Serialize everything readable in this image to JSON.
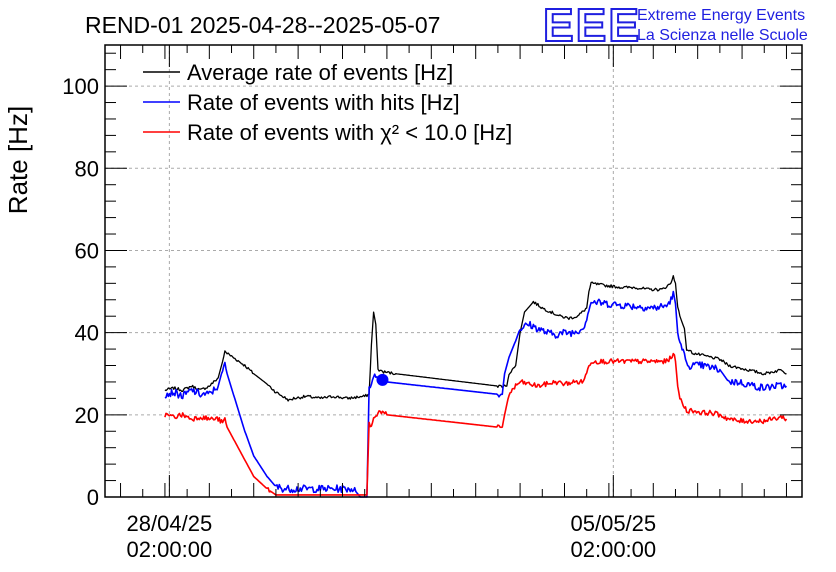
{
  "chart_data": {
    "type": "line",
    "title": "REND-01 2025-04-28--2025-05-07",
    "xlabel": "",
    "ylabel": "Rate [Hz]",
    "ylim": [
      0,
      110
    ],
    "yticks": [
      0,
      20,
      40,
      60,
      80,
      100
    ],
    "xlim": [
      -0.35,
      15.35
    ],
    "xticks": [
      {
        "x": 1.1,
        "line1": "28/04/25",
        "line2": "02:00:00"
      },
      {
        "x": 11.1,
        "line1": "05/05/25",
        "line2": "02:00:00"
      }
    ],
    "grid": true,
    "legend_position": "top-left",
    "logo": {
      "mark": "EEE",
      "line1": "Extreme Energy Events",
      "line2": "La Scienza nelle Scuole"
    },
    "series": [
      {
        "name": "Average rate of events [Hz]",
        "color": "#000000",
        "noise": 0.35,
        "points": [
          [
            1.0,
            26
          ],
          [
            1.2,
            26.5
          ],
          [
            1.4,
            26
          ],
          [
            1.6,
            27
          ],
          [
            1.8,
            26
          ],
          [
            2.0,
            27
          ],
          [
            2.2,
            29
          ],
          [
            2.3,
            33
          ],
          [
            2.35,
            35.5
          ],
          [
            2.4,
            35
          ],
          [
            2.6,
            33.5
          ],
          [
            2.8,
            32
          ],
          [
            3.0,
            30
          ],
          [
            3.3,
            27.5
          ],
          [
            3.5,
            25.5
          ],
          [
            3.8,
            23.5
          ],
          [
            3.9,
            24
          ],
          [
            4.2,
            24.5
          ],
          [
            4.5,
            24
          ],
          [
            4.8,
            24.5
          ],
          [
            5.1,
            24
          ],
          [
            5.5,
            24.5
          ],
          [
            5.6,
            25
          ],
          [
            5.65,
            37
          ],
          [
            5.7,
            45
          ],
          [
            5.75,
            42
          ],
          [
            5.8,
            31
          ],
          [
            5.9,
            30.5
          ],
          [
            6.2,
            30
          ],
          [
            8.5,
            27
          ],
          [
            8.7,
            27
          ],
          [
            8.75,
            30
          ],
          [
            8.9,
            32
          ],
          [
            9.0,
            40
          ],
          [
            9.1,
            45
          ],
          [
            9.3,
            47.5
          ],
          [
            9.5,
            46
          ],
          [
            9.7,
            45
          ],
          [
            9.9,
            44
          ],
          [
            10.1,
            43.5
          ],
          [
            10.3,
            44
          ],
          [
            10.5,
            46
          ],
          [
            10.55,
            50
          ],
          [
            10.6,
            52
          ],
          [
            10.9,
            51.5
          ],
          [
            11.3,
            51
          ],
          [
            11.6,
            51
          ],
          [
            11.9,
            50.5
          ],
          [
            12.2,
            50.5
          ],
          [
            12.4,
            52
          ],
          [
            12.45,
            54
          ],
          [
            12.5,
            52
          ],
          [
            12.55,
            46
          ],
          [
            12.6,
            44
          ],
          [
            12.7,
            41
          ],
          [
            12.75,
            36
          ],
          [
            12.9,
            35
          ],
          [
            13.1,
            34.5
          ],
          [
            13.3,
            34
          ],
          [
            13.5,
            33.5
          ],
          [
            13.7,
            32
          ],
          [
            13.9,
            31.5
          ],
          [
            14.1,
            31
          ],
          [
            14.3,
            30.5
          ],
          [
            14.5,
            30
          ],
          [
            14.7,
            30.5
          ],
          [
            14.9,
            31
          ],
          [
            15.0,
            30
          ]
        ]
      },
      {
        "name": "Rate of events with hits [Hz]",
        "color": "#0000ff",
        "noise": 0.9,
        "points": [
          [
            1.0,
            25
          ],
          [
            1.2,
            25.5
          ],
          [
            1.4,
            24.5
          ],
          [
            1.6,
            26
          ],
          [
            1.8,
            25
          ],
          [
            2.0,
            25
          ],
          [
            2.2,
            27
          ],
          [
            2.3,
            31
          ],
          [
            2.35,
            32
          ],
          [
            2.4,
            30
          ],
          [
            2.6,
            23
          ],
          [
            2.8,
            16
          ],
          [
            3.0,
            10
          ],
          [
            3.3,
            5
          ],
          [
            3.5,
            2.5
          ],
          [
            3.7,
            2
          ],
          [
            4.0,
            2
          ],
          [
            4.5,
            2
          ],
          [
            5.0,
            2
          ],
          [
            5.2,
            2
          ],
          [
            5.25,
            2
          ],
          [
            5.4,
            0
          ],
          [
            5.55,
            0
          ],
          [
            5.6,
            26
          ],
          [
            5.65,
            28
          ],
          [
            5.7,
            30
          ],
          [
            5.75,
            29
          ],
          [
            5.9,
            28.5
          ],
          [
            6.0,
            28
          ],
          [
            8.5,
            25
          ],
          [
            8.6,
            25
          ],
          [
            8.65,
            30
          ],
          [
            8.75,
            34
          ],
          [
            8.9,
            38
          ],
          [
            9.0,
            41
          ],
          [
            9.2,
            42
          ],
          [
            9.4,
            41
          ],
          [
            9.6,
            40
          ],
          [
            9.8,
            39.5
          ],
          [
            10.0,
            40
          ],
          [
            10.2,
            40
          ],
          [
            10.4,
            41
          ],
          [
            10.5,
            43
          ],
          [
            10.55,
            46
          ],
          [
            10.6,
            47.5
          ],
          [
            11.0,
            47
          ],
          [
            11.5,
            46.5
          ],
          [
            12.0,
            46
          ],
          [
            12.3,
            46.5
          ],
          [
            12.4,
            48
          ],
          [
            12.45,
            50
          ],
          [
            12.5,
            47
          ],
          [
            12.55,
            40
          ],
          [
            12.6,
            37
          ],
          [
            12.7,
            35
          ],
          [
            12.75,
            32
          ],
          [
            12.9,
            32
          ],
          [
            13.1,
            32
          ],
          [
            13.3,
            31.5
          ],
          [
            13.5,
            31
          ],
          [
            13.7,
            28
          ],
          [
            13.9,
            28
          ],
          [
            14.1,
            27.5
          ],
          [
            14.3,
            27
          ],
          [
            14.5,
            26.5
          ],
          [
            14.7,
            27
          ],
          [
            14.9,
            27
          ],
          [
            15.0,
            27
          ]
        ]
      },
      {
        "name": "Rate of events with χ² < 10.0 [Hz]",
        "color": "#ff0000",
        "noise": 0.6,
        "points": [
          [
            1.0,
            20
          ],
          [
            1.2,
            19.5
          ],
          [
            1.4,
            20
          ],
          [
            1.6,
            19
          ],
          [
            1.8,
            19.5
          ],
          [
            2.0,
            19
          ],
          [
            2.2,
            19
          ],
          [
            2.3,
            18
          ],
          [
            2.35,
            19
          ],
          [
            2.4,
            17
          ],
          [
            2.6,
            13
          ],
          [
            2.8,
            9
          ],
          [
            3.0,
            5
          ],
          [
            3.3,
            2
          ],
          [
            3.5,
            0.5
          ],
          [
            3.7,
            0.5
          ],
          [
            4.0,
            0.5
          ],
          [
            4.5,
            0.5
          ],
          [
            5.0,
            0.5
          ],
          [
            5.4,
            0.5
          ],
          [
            5.5,
            0.5
          ],
          [
            5.55,
            0.5
          ],
          [
            5.6,
            18
          ],
          [
            5.65,
            17
          ],
          [
            5.7,
            19
          ],
          [
            5.75,
            20
          ],
          [
            5.85,
            21
          ],
          [
            5.9,
            20.5
          ],
          [
            6.0,
            20
          ],
          [
            8.5,
            17
          ],
          [
            8.6,
            17
          ],
          [
            8.65,
            20
          ],
          [
            8.75,
            25
          ],
          [
            8.9,
            27
          ],
          [
            9.0,
            28
          ],
          [
            9.2,
            27.5
          ],
          [
            9.4,
            27
          ],
          [
            9.6,
            27.5
          ],
          [
            9.8,
            28
          ],
          [
            10.0,
            27.5
          ],
          [
            10.2,
            28
          ],
          [
            10.4,
            28
          ],
          [
            10.5,
            30
          ],
          [
            10.55,
            32
          ],
          [
            10.6,
            33
          ],
          [
            11.0,
            33
          ],
          [
            11.5,
            33
          ],
          [
            12.0,
            33
          ],
          [
            12.3,
            33
          ],
          [
            12.4,
            34
          ],
          [
            12.45,
            35
          ],
          [
            12.5,
            33
          ],
          [
            12.55,
            27
          ],
          [
            12.6,
            24
          ],
          [
            12.7,
            22
          ],
          [
            12.75,
            21
          ],
          [
            12.9,
            21
          ],
          [
            13.1,
            20.5
          ],
          [
            13.3,
            20.5
          ],
          [
            13.5,
            20
          ],
          [
            13.7,
            19
          ],
          [
            13.9,
            18.5
          ],
          [
            14.1,
            18.5
          ],
          [
            14.3,
            18.5
          ],
          [
            14.5,
            18.5
          ],
          [
            14.7,
            19
          ],
          [
            14.9,
            19.5
          ],
          [
            15.0,
            19
          ]
        ]
      }
    ],
    "markers": [
      {
        "series": 1,
        "x": 5.9,
        "y": 28.5,
        "color": "#0000ff"
      }
    ]
  }
}
